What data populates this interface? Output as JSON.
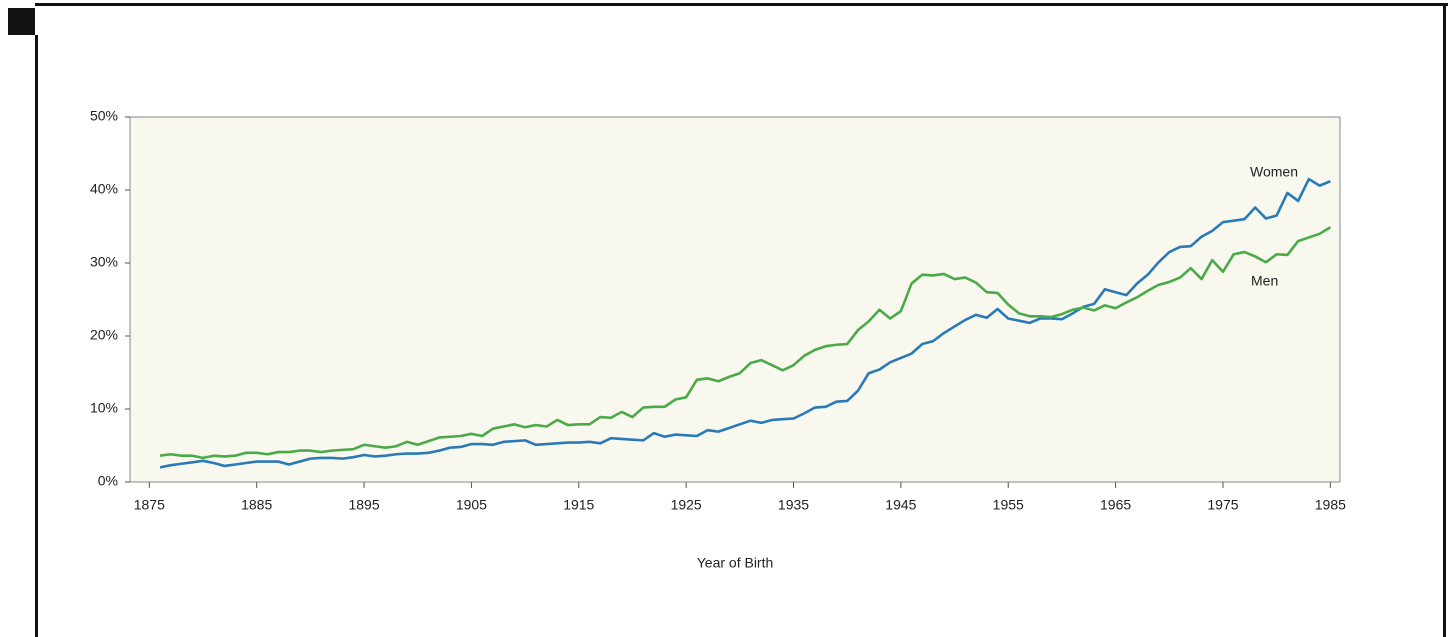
{
  "chart_data": {
    "type": "line",
    "x_label": "Year of Birth",
    "x": [
      1876,
      1877,
      1878,
      1879,
      1880,
      1881,
      1882,
      1883,
      1884,
      1885,
      1886,
      1887,
      1888,
      1889,
      1890,
      1891,
      1892,
      1893,
      1894,
      1895,
      1896,
      1897,
      1898,
      1899,
      1900,
      1901,
      1902,
      1903,
      1904,
      1905,
      1906,
      1907,
      1908,
      1909,
      1910,
      1911,
      1912,
      1913,
      1914,
      1915,
      1916,
      1917,
      1918,
      1919,
      1920,
      1921,
      1922,
      1923,
      1924,
      1925,
      1926,
      1927,
      1928,
      1929,
      1930,
      1931,
      1932,
      1933,
      1934,
      1935,
      1936,
      1937,
      1938,
      1939,
      1940,
      1941,
      1942,
      1943,
      1944,
      1945,
      1946,
      1947,
      1948,
      1949,
      1950,
      1951,
      1952,
      1953,
      1954,
      1955,
      1956,
      1957,
      1958,
      1959,
      1960,
      1961,
      1962,
      1963,
      1964,
      1965,
      1966,
      1967,
      1968,
      1969,
      1970,
      1971,
      1972,
      1973,
      1974,
      1975,
      1976,
      1977,
      1978,
      1979,
      1980,
      1981,
      1982,
      1983,
      1984,
      1985
    ],
    "series": [
      {
        "name": "Women",
        "color": "#2a7ab8",
        "values": [
          2.0,
          2.3,
          2.5,
          2.7,
          2.9,
          2.6,
          2.2,
          2.4,
          2.6,
          2.8,
          2.8,
          2.8,
          2.4,
          2.8,
          3.2,
          3.3,
          3.3,
          3.2,
          3.4,
          3.7,
          3.5,
          3.6,
          3.8,
          3.9,
          3.9,
          4.0,
          4.3,
          4.7,
          4.8,
          5.2,
          5.2,
          5.1,
          5.5,
          5.6,
          5.7,
          5.1,
          5.2,
          5.3,
          5.4,
          5.4,
          5.5,
          5.3,
          6.0,
          5.9,
          5.8,
          5.7,
          6.7,
          6.2,
          6.5,
          6.4,
          6.3,
          7.1,
          6.9,
          7.4,
          7.9,
          8.4,
          8.1,
          8.5,
          8.6,
          8.7,
          9.4,
          10.2,
          10.3,
          11.0,
          11.1,
          12.5,
          14.9,
          15.4,
          16.4,
          17.0,
          17.6,
          18.9,
          19.3,
          20.4,
          21.3,
          22.2,
          22.9,
          22.5,
          23.7,
          22.4,
          22.1,
          21.8,
          22.4,
          22.4,
          22.3,
          23.1,
          24.0,
          24.4,
          26.4,
          26.0,
          25.6,
          27.2,
          28.4,
          30.1,
          31.5,
          32.2,
          32.3,
          33.6,
          34.4,
          35.6,
          35.8,
          36.0,
          37.6,
          36.1,
          36.5,
          39.6,
          38.5,
          41.5,
          40.6,
          41.2
        ]
      },
      {
        "name": "Men",
        "color": "#4aaa48",
        "values": [
          3.6,
          3.8,
          3.6,
          3.6,
          3.3,
          3.6,
          3.5,
          3.6,
          4.0,
          4.0,
          3.8,
          4.1,
          4.1,
          4.3,
          4.3,
          4.1,
          4.3,
          4.4,
          4.5,
          5.1,
          4.9,
          4.7,
          4.9,
          5.5,
          5.1,
          5.6,
          6.1,
          6.2,
          6.3,
          6.6,
          6.3,
          7.3,
          7.6,
          7.9,
          7.5,
          7.8,
          7.6,
          8.5,
          7.8,
          7.9,
          7.9,
          8.9,
          8.8,
          9.6,
          8.9,
          10.2,
          10.3,
          10.3,
          11.3,
          11.6,
          14.0,
          14.2,
          13.8,
          14.4,
          14.9,
          16.3,
          16.7,
          16.0,
          15.3,
          16.0,
          17.3,
          18.1,
          18.6,
          18.8,
          18.9,
          20.8,
          22.0,
          23.6,
          22.4,
          23.4,
          27.2,
          28.4,
          28.3,
          28.5,
          27.8,
          28.0,
          27.3,
          26.0,
          25.9,
          24.3,
          23.1,
          22.7,
          22.7,
          22.6,
          23.0,
          23.6,
          23.9,
          23.5,
          24.2,
          23.8,
          24.6,
          25.3,
          26.2,
          27.0,
          27.4,
          28.0,
          29.3,
          27.8,
          30.4,
          28.8,
          31.2,
          31.5,
          30.9,
          30.1,
          31.2,
          31.1,
          33.0,
          33.5,
          34.0,
          34.9
        ]
      }
    ],
    "xlim": [
      1873.2,
      1985.9
    ],
    "xticks": [
      1875,
      1885,
      1895,
      1905,
      1915,
      1925,
      1935,
      1945,
      1955,
      1965,
      1975,
      1985
    ],
    "ylim": [
      0,
      50
    ],
    "yticks": [
      {
        "value": 0,
        "label": "0%"
      },
      {
        "value": 10,
        "label": "10%"
      },
      {
        "value": 20,
        "label": "20%"
      },
      {
        "value": 30,
        "label": "30%"
      },
      {
        "value": 40,
        "label": "40%"
      },
      {
        "value": 50,
        "label": "50%"
      }
    ],
    "background": "#f8f8ee"
  }
}
